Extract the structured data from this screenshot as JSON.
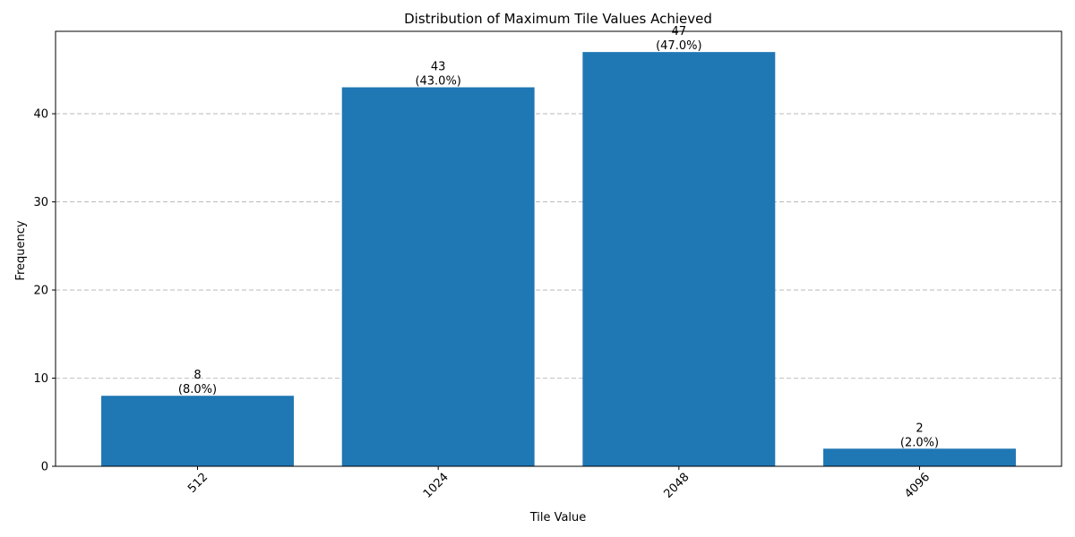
{
  "chart_data": {
    "type": "bar",
    "title": "Distribution of Maximum Tile Values Achieved",
    "xlabel": "Tile Value",
    "ylabel": "Frequency",
    "categories": [
      "512",
      "1024",
      "2048",
      "4096"
    ],
    "values": [
      8,
      43,
      47,
      2
    ],
    "data_labels": [
      {
        "count": "8",
        "percent": "(8.0%)"
      },
      {
        "count": "43",
        "percent": "(43.0%)"
      },
      {
        "count": "47",
        "percent": "(47.0%)"
      },
      {
        "count": "2",
        "percent": "(2.0%)"
      }
    ],
    "ylim": [
      0,
      49.35
    ],
    "yticks": [
      0,
      10,
      20,
      30,
      40
    ],
    "x_tick_rotation": 45,
    "grid": {
      "axis": "y",
      "style": "dashed"
    },
    "legend": "none",
    "bar_color": "#1f77b4"
  }
}
